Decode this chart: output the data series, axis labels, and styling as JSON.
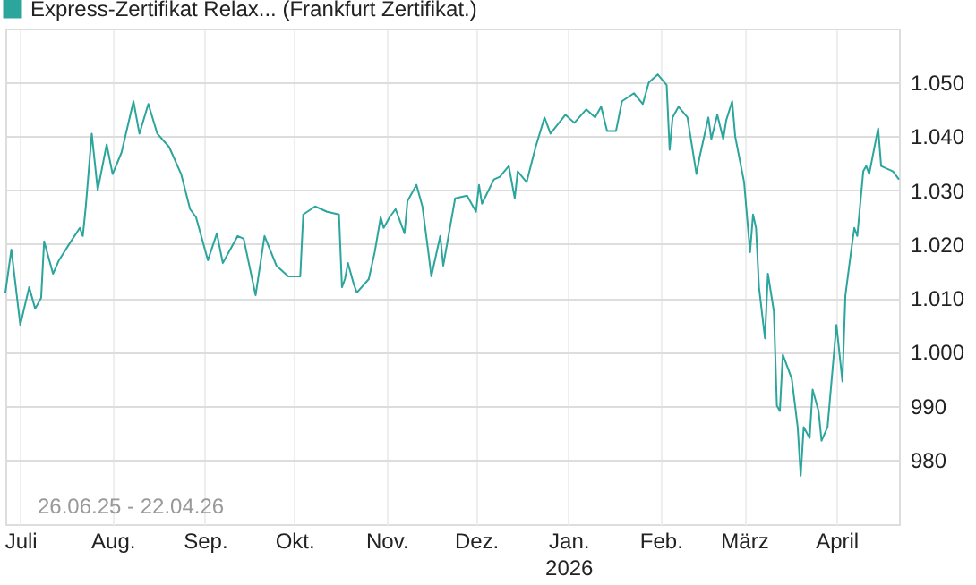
{
  "chart_data": {
    "type": "line",
    "series": [
      {
        "name": "Express-Zertifikat Relax... (Frankfurt Zertifikat.)",
        "color": "#2ca59c",
        "x": [
          "2025-06-26",
          "2025-06-28",
          "2025-07-01",
          "2025-07-04",
          "2025-07-06",
          "2025-07-08",
          "2025-07-09",
          "2025-07-12",
          "2025-07-14",
          "2025-07-18",
          "2025-07-21",
          "2025-07-22",
          "2025-07-23",
          "2025-07-25",
          "2025-07-27",
          "2025-07-30",
          "2025-08-01",
          "2025-08-04",
          "2025-08-08",
          "2025-08-10",
          "2025-08-13",
          "2025-08-16",
          "2025-08-20",
          "2025-08-24",
          "2025-08-27",
          "2025-08-29",
          "2025-09-02",
          "2025-09-05",
          "2025-09-07",
          "2025-09-12",
          "2025-09-14",
          "2025-09-18",
          "2025-09-21",
          "2025-09-25",
          "2025-09-29",
          "2025-10-03",
          "2025-10-04",
          "2025-10-08",
          "2025-10-12",
          "2025-10-16",
          "2025-10-17",
          "2025-10-18",
          "2025-10-19",
          "2025-10-21",
          "2025-10-22",
          "2025-10-26",
          "2025-10-28",
          "2025-10-30",
          "2025-10-31",
          "2025-11-02",
          "2025-11-04",
          "2025-11-07",
          "2025-11-08",
          "2025-11-11",
          "2025-11-13",
          "2025-11-15",
          "2025-11-16",
          "2025-11-19",
          "2025-11-20",
          "2025-11-24",
          "2025-11-28",
          "2025-12-01",
          "2025-12-02",
          "2025-12-03",
          "2025-12-07",
          "2025-12-09",
          "2025-12-12",
          "2025-12-14",
          "2025-12-15",
          "2025-12-18",
          "2025-12-21",
          "2025-12-24",
          "2025-12-26",
          "2025-12-31",
          "2026-01-03",
          "2026-01-07",
          "2026-01-10",
          "2026-01-12",
          "2026-01-14",
          "2026-01-17",
          "2026-01-19",
          "2026-01-23",
          "2026-01-26",
          "2026-01-28",
          "2026-01-31",
          "2026-02-03",
          "2026-02-04",
          "2026-02-05",
          "2026-02-07",
          "2026-02-10",
          "2026-02-13",
          "2026-02-14",
          "2026-02-17",
          "2026-02-18",
          "2026-02-20",
          "2026-02-22",
          "2026-02-23",
          "2026-02-25",
          "2026-02-26",
          "2026-03-01",
          "2026-03-03",
          "2026-03-04",
          "2026-03-05",
          "2026-03-06",
          "2026-03-08",
          "2026-03-09",
          "2026-03-11",
          "2026-03-12",
          "2026-03-13",
          "2026-03-14",
          "2026-03-17",
          "2026-03-19",
          "2026-03-20",
          "2026-03-21",
          "2026-03-23",
          "2026-03-24",
          "2026-03-26",
          "2026-03-27",
          "2026-03-29",
          "2026-04-01",
          "2026-04-03",
          "2026-04-04",
          "2026-04-06",
          "2026-04-07",
          "2026-04-08",
          "2026-04-10",
          "2026-04-11",
          "2026-04-12",
          "2026-04-15",
          "2026-04-16",
          "2026-04-20",
          "2026-04-22"
        ],
        "values": [
          1011,
          1019,
          1005,
          1012,
          1008,
          1010,
          1020.5,
          1014.5,
          1017,
          1020.5,
          1023,
          1021.5,
          1027,
          1040.5,
          1030,
          1038.5,
          1033,
          1037,
          1046.5,
          1040.5,
          1046,
          1040.5,
          1038,
          1033,
          1026.5,
          1025,
          1017,
          1022,
          1016.5,
          1021.5,
          1021,
          1010.5,
          1021.5,
          1016,
          1014,
          1014,
          1025.5,
          1027,
          1026,
          1025.5,
          1012,
          1013.5,
          1016.5,
          1012.5,
          1011,
          1013.5,
          1018.5,
          1025,
          1023,
          1025,
          1026.5,
          1022,
          1028,
          1031,
          1027,
          1018.5,
          1014,
          1021.5,
          1016,
          1028.5,
          1029,
          1026,
          1031,
          1027.5,
          1032,
          1032.5,
          1034.5,
          1028.5,
          1033.5,
          1031.5,
          1038,
          1043.5,
          1040.5,
          1044,
          1042.5,
          1045,
          1043.5,
          1045.5,
          1041,
          1041,
          1046.5,
          1048,
          1046,
          1050,
          1051.5,
          1049.5,
          1037.5,
          1043.5,
          1045.5,
          1043.5,
          1033,
          1036,
          1043.5,
          1039.5,
          1044,
          1039.5,
          1043,
          1046.5,
          1040,
          1031.5,
          1018.5,
          1025.5,
          1023,
          1012,
          1002.5,
          1014.5,
          1007.5,
          990,
          989,
          999.5,
          995,
          986,
          977,
          986,
          984,
          993,
          989,
          983.5,
          986,
          1005,
          994.5,
          1010.5,
          1019,
          1023,
          1021.5,
          1033.5,
          1034.5,
          1033,
          1041.5,
          1034.5,
          1033.5,
          1032
        ]
      }
    ],
    "xlim": [
      "2025-06-26",
      "2026-04-22"
    ],
    "xticks": [
      {
        "value": "2025-07-01",
        "label": "Juli"
      },
      {
        "value": "2025-08-01",
        "label": "Aug."
      },
      {
        "value": "2025-09-01",
        "label": "Sep."
      },
      {
        "value": "2025-10-01",
        "label": "Okt."
      },
      {
        "value": "2025-11-01",
        "label": "Nov."
      },
      {
        "value": "2025-12-01",
        "label": "Dez."
      },
      {
        "value": "2026-01-01",
        "label": "Jan.\n2026"
      },
      {
        "value": "2026-02-01",
        "label": "Feb."
      },
      {
        "value": "2026-03-01",
        "label": "März"
      },
      {
        "value": "2026-04-01",
        "label": "April"
      }
    ],
    "ylim": [
      968,
      1060
    ],
    "yticks": [
      980,
      990,
      {
        "value": 1000,
        "label": "1.000"
      },
      {
        "value": 1010,
        "label": "1.010"
      },
      {
        "value": 1020,
        "label": "1.020"
      },
      {
        "value": 1030,
        "label": "1.030"
      },
      {
        "value": 1040,
        "label": "1.040"
      },
      {
        "value": 1050,
        "label": "1.050"
      }
    ],
    "annotations": [
      "26.06.25 - 22.04.26"
    ],
    "grid": true,
    "legend": "top left",
    "line_style": "solid",
    "marker": "none"
  }
}
